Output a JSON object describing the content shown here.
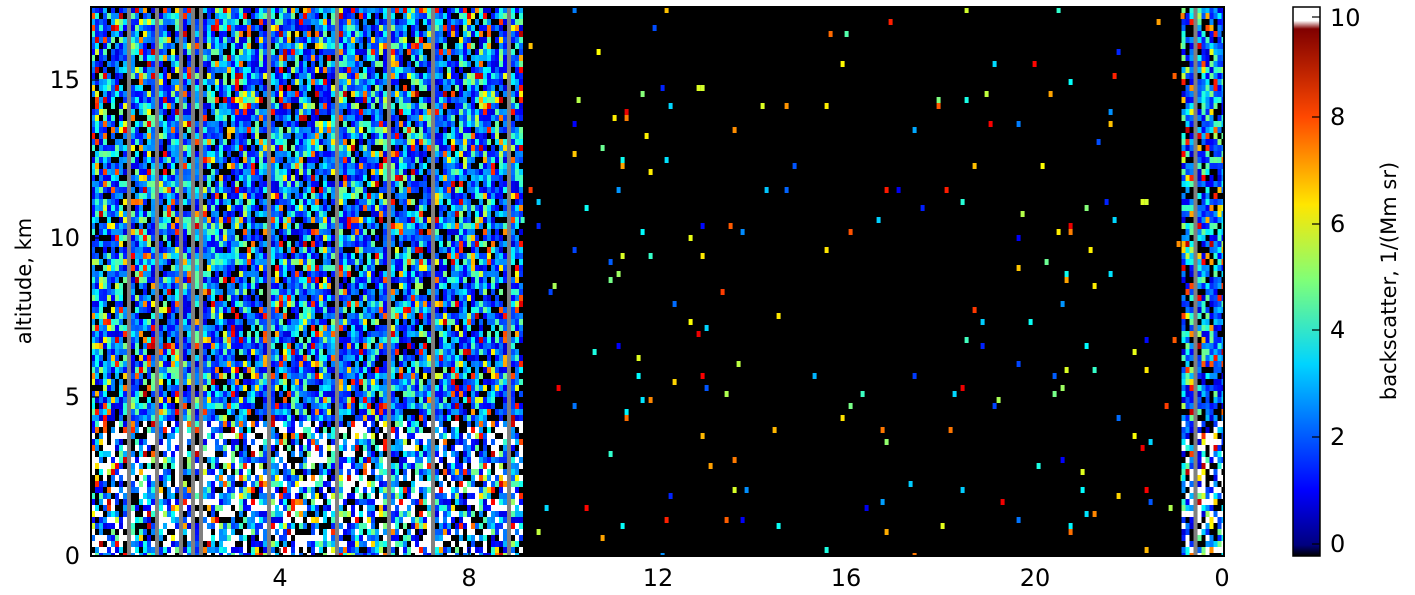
{
  "chart_data": {
    "type": "heatmap",
    "title": "",
    "xlabel": "",
    "ylabel": "altitude, km",
    "x_ticks": [
      "4",
      "8",
      "12",
      "16",
      "20",
      "0"
    ],
    "y_ticks": [
      "0",
      "5",
      "10",
      "15"
    ],
    "xlim": [
      0,
      24
    ],
    "ylim": [
      0,
      17.3
    ],
    "grid": false,
    "colorbar": {
      "label": "backscatter, 1/(Mm sr)",
      "range": [
        -0.3,
        10
      ],
      "ticks": [
        "0",
        "2",
        "4",
        "6",
        "8",
        "10"
      ],
      "colormap": "jet",
      "over_color": "#ffffff",
      "under_color": "#000000"
    },
    "regions": [
      {
        "x_start": 0,
        "x_end": 9.1,
        "description_level": "dense cloud/aerosol backscatter through full column"
      },
      {
        "x_start": 9.1,
        "x_end": 23.1,
        "description_level": "near-zero backscatter with sparse noise"
      },
      {
        "x_start": 23.1,
        "x_end": 24,
        "description_level": "dense backscatter resumes"
      }
    ]
  },
  "colors": {
    "background_plot": "#000000",
    "missing_data": "#808080",
    "axis": "#000000"
  }
}
